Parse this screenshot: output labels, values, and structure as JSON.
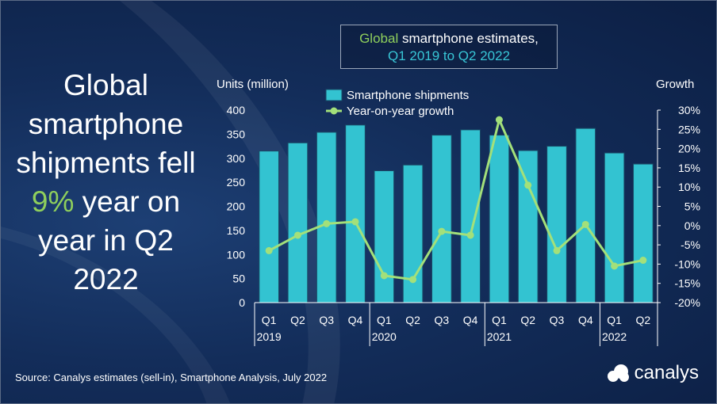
{
  "headline": {
    "part1": "Global smartphone shipments fell",
    "highlight": "9%",
    "part2": "year on year in Q2 2022"
  },
  "title_box": {
    "line1_accent": "Global",
    "line1_rest": " smartphone estimates,",
    "line2": "Q1 2019 to Q2 2022"
  },
  "footer": {
    "source": "Source: Canalys estimates (sell-in), Smartphone Analysis, July 2022"
  },
  "brand": {
    "name": "canalys",
    "icon": "canalys-logo-icon"
  },
  "colors": {
    "bar": "#33c3d1",
    "bar_stroke": "#1a4a66",
    "line": "#a3e07a",
    "accent_text": "#8fcf5c",
    "axis": "#ffffff"
  },
  "chart_data": {
    "type": "bar",
    "categories": [
      "Q1",
      "Q2",
      "Q3",
      "Q4",
      "Q1",
      "Q2",
      "Q3",
      "Q4",
      "Q1",
      "Q2",
      "Q3",
      "Q4",
      "Q1",
      "Q2"
    ],
    "year_labels": [
      "2019",
      "2020",
      "2021",
      "2022"
    ],
    "ylabel": "Units (million)",
    "y2label": "Growth",
    "ylim": [
      0,
      400
    ],
    "y_ticks": [
      "0",
      "50",
      "100",
      "150",
      "200",
      "250",
      "300",
      "350",
      "400"
    ],
    "y2lim": [
      -20,
      30
    ],
    "y2_ticks": [
      "-20%",
      "-15%",
      "-10%",
      "-5%",
      "0%",
      "5%",
      "10%",
      "15%",
      "20%",
      "25%",
      "30%"
    ],
    "legend_position": "top-center",
    "series": [
      {
        "name": "Smartphone shipments",
        "type": "bar",
        "values": [
          315,
          332,
          354,
          369,
          274,
          286,
          348,
          359,
          348,
          316,
          325,
          362,
          311,
          288
        ]
      },
      {
        "name": "Year-on-year growth",
        "type": "line",
        "axis": "right",
        "values": [
          -6.5,
          -2.5,
          0.5,
          1.0,
          -13,
          -14,
          -1.5,
          -2.5,
          27.5,
          10.5,
          -6.5,
          0.3,
          -10.5,
          -9
        ]
      }
    ]
  }
}
